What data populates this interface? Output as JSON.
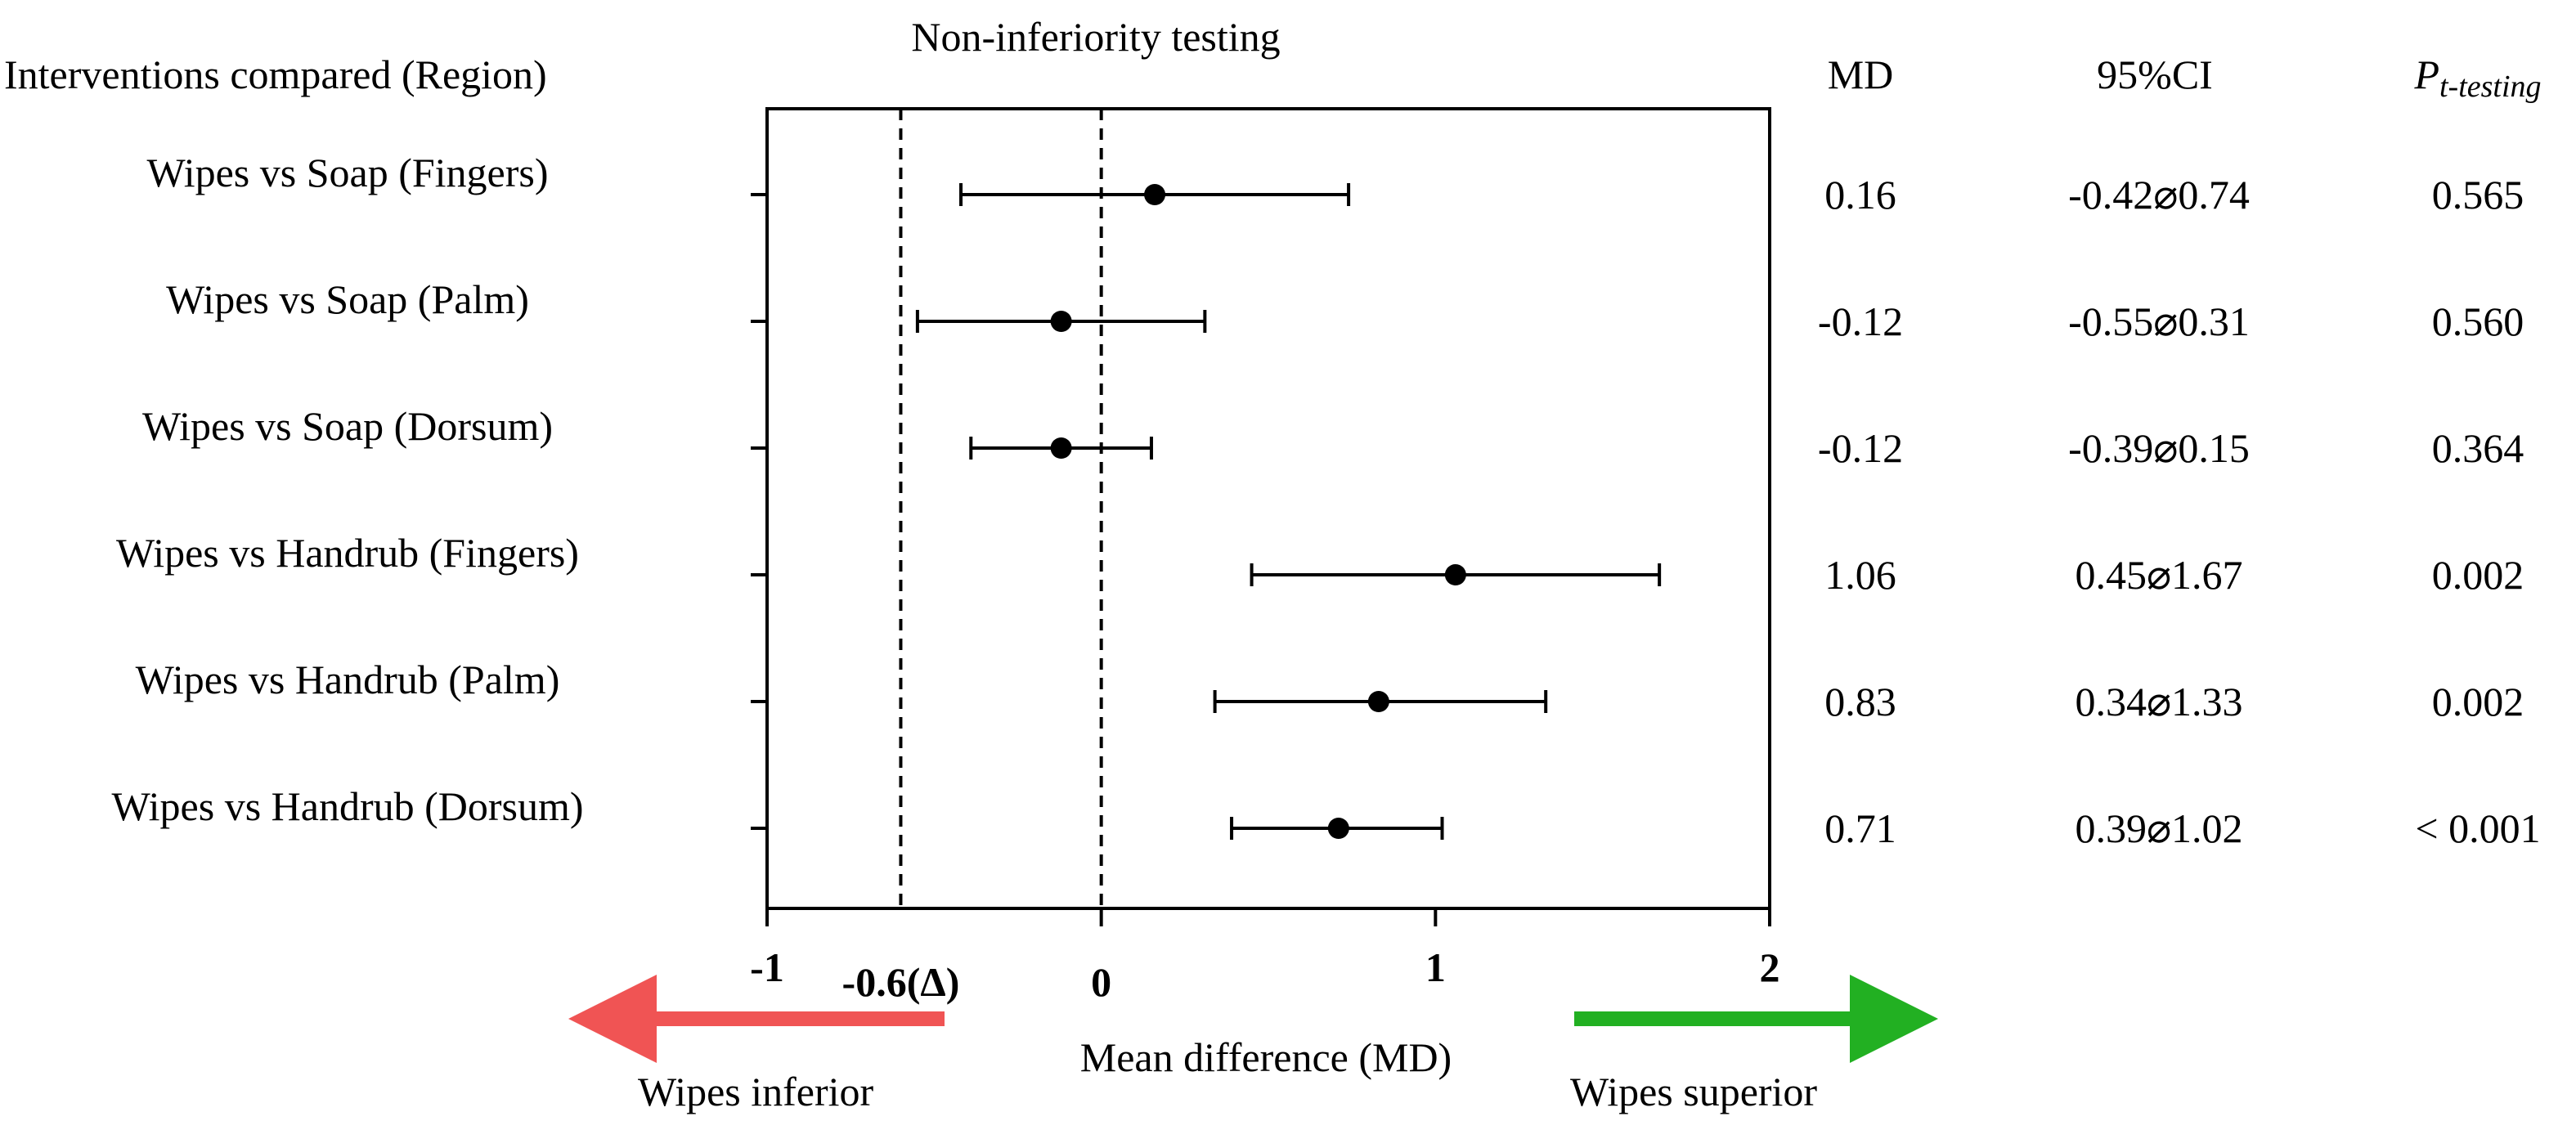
{
  "chart_data": {
    "type": "forest",
    "title": "Non-inferiority testing",
    "row_header": "Interventions compared (Region)",
    "xlabel": "Mean difference (MD)",
    "xlim": [
      -1,
      2
    ],
    "x_ticks": [
      -1,
      0,
      1,
      2
    ],
    "x_tick_labels": [
      "-1",
      "0",
      "1",
      "2"
    ],
    "reference_lines": [
      {
        "value": -0.6,
        "label": "-0.6(Δ)",
        "style": "dashed"
      },
      {
        "value": 0,
        "label": "0",
        "style": "dashed"
      }
    ],
    "column_headers": {
      "md": "MD",
      "ci": "95%CI",
      "p_main": "P",
      "p_sub": "t-testing"
    },
    "rows": [
      {
        "label": "Wipes vs Soap (Fingers)",
        "md": 0.16,
        "lower": -0.42,
        "upper": 0.74,
        "md_text": "0.16",
        "ci_text": "-0.42⌀0.74",
        "p_text": "0.565"
      },
      {
        "label": "Wipes vs Soap (Palm)",
        "md": -0.12,
        "lower": -0.55,
        "upper": 0.31,
        "md_text": "-0.12",
        "ci_text": "-0.55⌀0.31",
        "p_text": "0.560"
      },
      {
        "label": "Wipes vs Soap (Dorsum)",
        "md": -0.12,
        "lower": -0.39,
        "upper": 0.15,
        "md_text": "-0.12",
        "ci_text": "-0.39⌀0.15",
        "p_text": "0.364"
      },
      {
        "label": "Wipes vs Handrub (Fingers)",
        "md": 1.06,
        "lower": 0.45,
        "upper": 1.67,
        "md_text": "1.06",
        "ci_text": "0.45⌀1.67",
        "p_text": "0.002"
      },
      {
        "label": "Wipes vs Handrub (Palm)",
        "md": 0.83,
        "lower": 0.34,
        "upper": 1.33,
        "md_text": "0.83",
        "ci_text": "0.34⌀1.33",
        "p_text": "0.002"
      },
      {
        "label": "Wipes vs Handrub (Dorsum)",
        "md": 0.71,
        "lower": 0.39,
        "upper": 1.02,
        "md_text": "0.71",
        "ci_text": "0.39⌀1.02",
        "p_text": "< 0.001"
      }
    ],
    "arrows": {
      "left": {
        "label": "Wipes inferior",
        "color": "#f05454"
      },
      "right": {
        "label": "Wipes superior",
        "color": "#22b022"
      }
    }
  }
}
